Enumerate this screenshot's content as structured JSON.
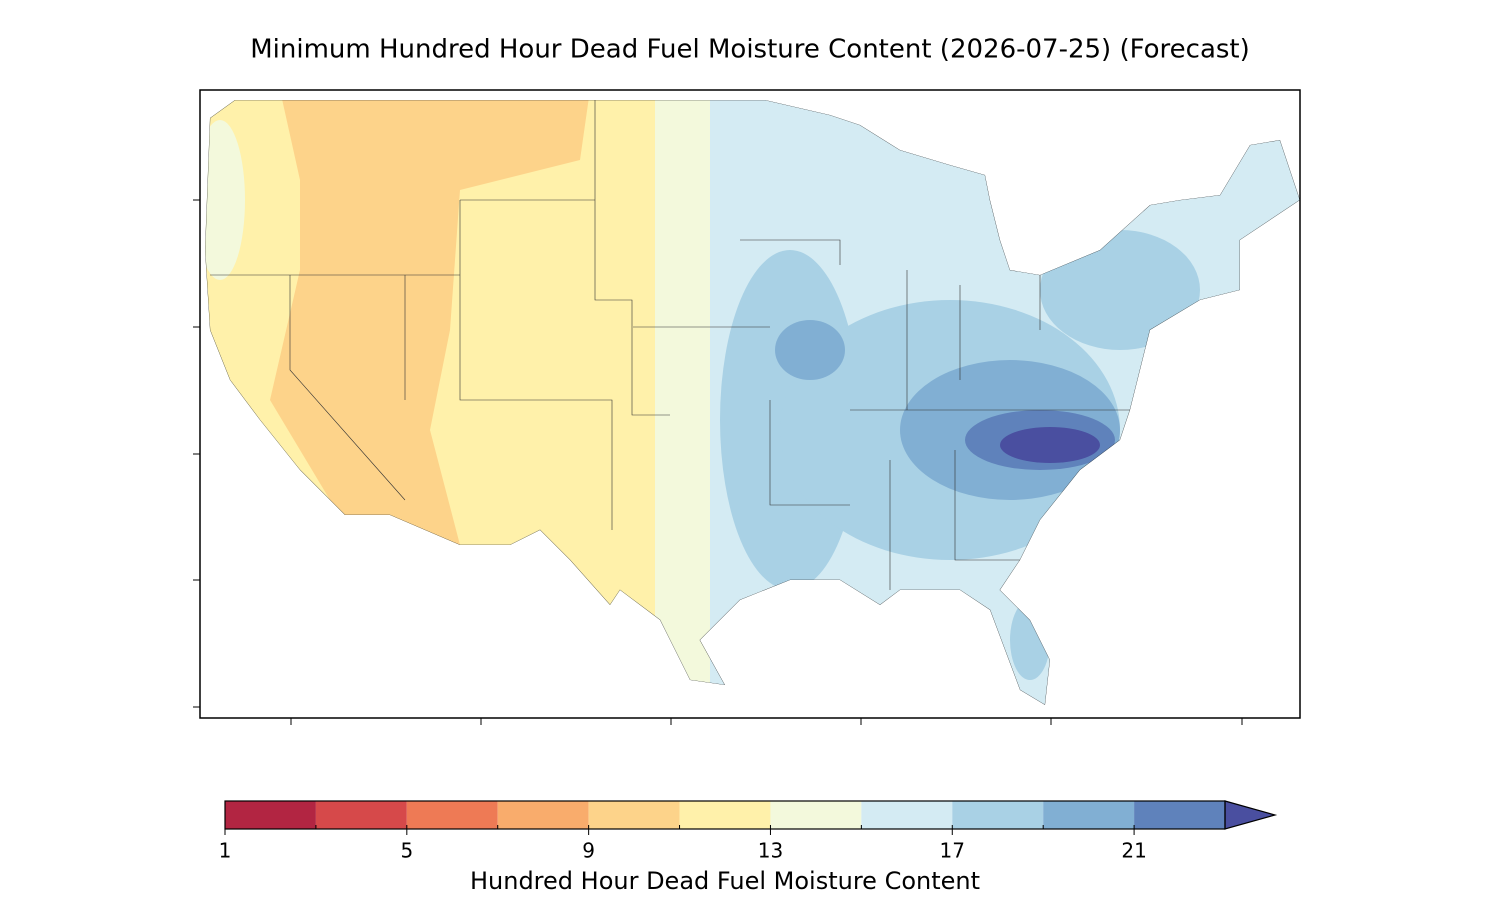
{
  "title": "Minimum Hundred Hour Dead Fuel Moisture Content (2026-07-25) (Forecast)",
  "colorbar": {
    "label": "Hundred Hour Dead Fuel Moisture Content",
    "levels": [
      1,
      3,
      5,
      7,
      9,
      11,
      13,
      15,
      17,
      19,
      21,
      23
    ],
    "ticks": [
      1,
      5,
      9,
      13,
      17,
      21
    ],
    "colors": [
      "#b22542",
      "#d6494a",
      "#ee7a55",
      "#f9ac6c",
      "#fdd38a",
      "#fff1aa",
      "#f3f9dc",
      "#d4ebf3",
      "#a9d1e5",
      "#81afd3",
      "#5f82bb"
    ],
    "extend_color": "#4a4fa0"
  }
}
